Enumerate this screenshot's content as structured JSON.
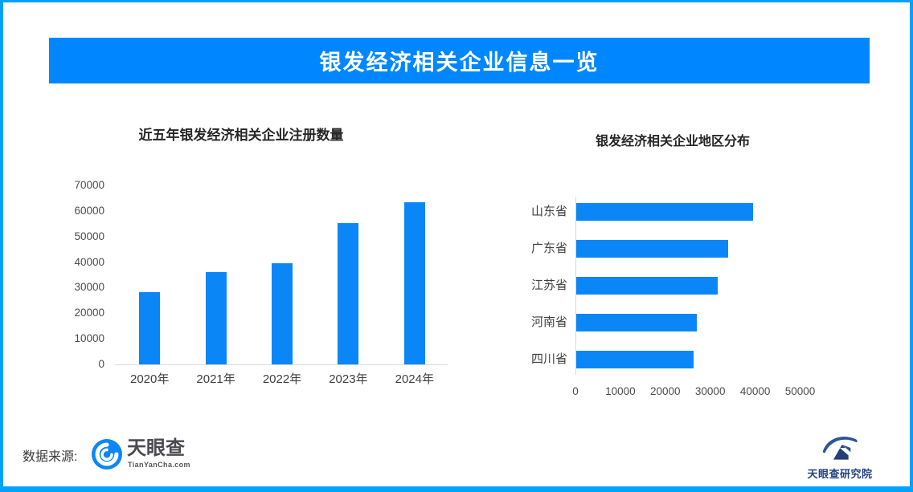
{
  "page": {
    "background": "#ffffff",
    "border_color": "#00a1ff",
    "banner": {
      "text": "银发经济相关企业信息一览",
      "bg_color": "#0087ff",
      "text_color": "#ffffff"
    }
  },
  "chart_data": [
    {
      "type": "bar",
      "orientation": "vertical",
      "title": "近五年银发经济相关企业注册数量",
      "categories": [
        "2020年",
        "2021年",
        "2022年",
        "2023年",
        "2024年"
      ],
      "values": [
        28300,
        36200,
        39500,
        55400,
        63400
      ],
      "ylabel": "",
      "xlabel": "",
      "ylim": [
        0,
        70000
      ],
      "yticks": [
        0,
        10000,
        20000,
        30000,
        40000,
        50000,
        60000,
        70000
      ],
      "bar_color": "#0b86f6",
      "grid": false,
      "legend": "none"
    },
    {
      "type": "bar",
      "orientation": "horizontal",
      "title": "银发经济相关企业地区分布",
      "categories": [
        "山东省",
        "广东省",
        "江苏省",
        "河南省",
        "四川省"
      ],
      "values": [
        39300,
        33800,
        31400,
        26800,
        26100
      ],
      "ylabel": "",
      "xlabel": "",
      "xlim": [
        0,
        50000
      ],
      "xticks": [
        0,
        10000,
        20000,
        30000,
        40000,
        50000
      ],
      "bar_color": "#0b86f6",
      "grid": false,
      "legend": "none"
    }
  ],
  "footer": {
    "source_label": "数据来源:",
    "tianyancha_logo": {
      "name": "天眼查",
      "domain": "TianYanCha.com",
      "icon_color": "#0b86f6"
    },
    "research_logo": {
      "name": "天眼查研究院",
      "color": "#23437f"
    }
  }
}
